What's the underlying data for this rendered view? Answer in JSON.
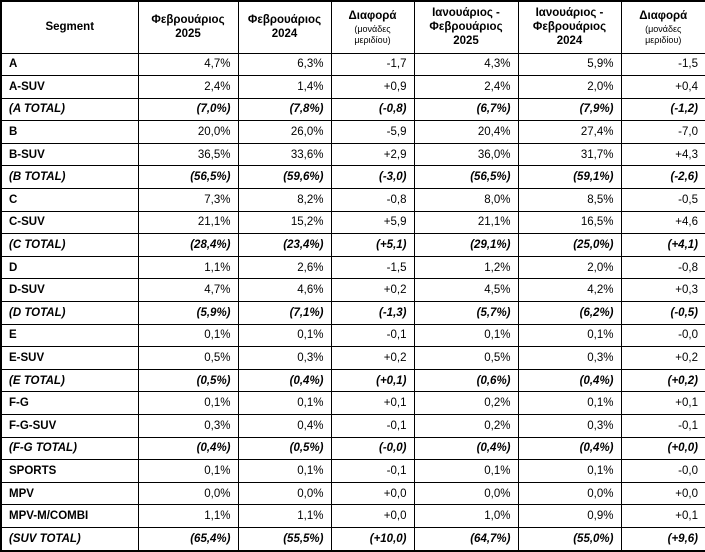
{
  "table": {
    "columns": [
      {
        "title": "Segment",
        "sub": ""
      },
      {
        "title": "Φεβρουάριος\n2025",
        "sub": ""
      },
      {
        "title": "Φεβρουάριος\n2024",
        "sub": ""
      },
      {
        "title": "Διαφορά",
        "sub": "(μονάδες\nμεριδίου)"
      },
      {
        "title": "Ιανουάριος -\nΦεβρουάριος\n2025",
        "sub": ""
      },
      {
        "title": "Ιανουάριος -\nΦεβρουάριος\n2024",
        "sub": ""
      },
      {
        "title": "Διαφορά",
        "sub": "(μονάδες\nμεριδίου)"
      }
    ],
    "rows": [
      {
        "segment": "A",
        "total": false,
        "values": [
          "4,7%",
          "6,3%",
          "-1,7",
          "4,3%",
          "5,9%",
          "-1,5"
        ]
      },
      {
        "segment": "A-SUV",
        "total": false,
        "values": [
          "2,4%",
          "1,4%",
          "+0,9",
          "2,4%",
          "2,0%",
          "+0,4"
        ]
      },
      {
        "segment": "(A TOTAL)",
        "total": true,
        "values": [
          "(7,0%)",
          "(7,8%)",
          "(-0,8)",
          "(6,7%)",
          "(7,9%)",
          "(-1,2)"
        ]
      },
      {
        "segment": "B",
        "total": false,
        "values": [
          "20,0%",
          "26,0%",
          "-5,9",
          "20,4%",
          "27,4%",
          "-7,0"
        ]
      },
      {
        "segment": "B-SUV",
        "total": false,
        "values": [
          "36,5%",
          "33,6%",
          "+2,9",
          "36,0%",
          "31,7%",
          "+4,3"
        ]
      },
      {
        "segment": "(B TOTAL)",
        "total": true,
        "values": [
          "(56,5%)",
          "(59,6%)",
          "(-3,0)",
          "(56,5%)",
          "(59,1%)",
          "(-2,6)"
        ]
      },
      {
        "segment": "C",
        "total": false,
        "values": [
          "7,3%",
          "8,2%",
          "-0,8",
          "8,0%",
          "8,5%",
          "-0,5"
        ]
      },
      {
        "segment": "C-SUV",
        "total": false,
        "values": [
          "21,1%",
          "15,2%",
          "+5,9",
          "21,1%",
          "16,5%",
          "+4,6"
        ]
      },
      {
        "segment": "(C TOTAL)",
        "total": true,
        "values": [
          "(28,4%)",
          "(23,4%)",
          "(+5,1)",
          "(29,1%)",
          "(25,0%)",
          "(+4,1)"
        ]
      },
      {
        "segment": "D",
        "total": false,
        "values": [
          "1,1%",
          "2,6%",
          "-1,5",
          "1,2%",
          "2,0%",
          "-0,8"
        ]
      },
      {
        "segment": "D-SUV",
        "total": false,
        "values": [
          "4,7%",
          "4,6%",
          "+0,2",
          "4,5%",
          "4,2%",
          "+0,3"
        ]
      },
      {
        "segment": "(D TOTAL)",
        "total": true,
        "values": [
          "(5,9%)",
          "(7,1%)",
          "(-1,3)",
          "(5,7%)",
          "(6,2%)",
          "(-0,5)"
        ]
      },
      {
        "segment": "E",
        "total": false,
        "values": [
          "0,1%",
          "0,1%",
          "-0,1",
          "0,1%",
          "0,1%",
          "-0,0"
        ]
      },
      {
        "segment": "E-SUV",
        "total": false,
        "values": [
          "0,5%",
          "0,3%",
          "+0,2",
          "0,5%",
          "0,3%",
          "+0,2"
        ]
      },
      {
        "segment": "(E TOTAL)",
        "total": true,
        "values": [
          "(0,5%)",
          "(0,4%)",
          "(+0,1)",
          "(0,6%)",
          "(0,4%)",
          "(+0,2)"
        ]
      },
      {
        "segment": "F-G",
        "total": false,
        "values": [
          "0,1%",
          "0,1%",
          "+0,1",
          "0,2%",
          "0,1%",
          "+0,1"
        ]
      },
      {
        "segment": "F-G-SUV",
        "total": false,
        "values": [
          "0,3%",
          "0,4%",
          "-0,1",
          "0,2%",
          "0,3%",
          "-0,1"
        ]
      },
      {
        "segment": "(F-G TOTAL)",
        "total": true,
        "values": [
          "(0,4%)",
          "(0,5%)",
          "(-0,0)",
          "(0,4%)",
          "(0,4%)",
          "(+0,0)"
        ]
      },
      {
        "segment": "SPORTS",
        "total": false,
        "values": [
          "0,1%",
          "0,1%",
          "-0,1",
          "0,1%",
          "0,1%",
          "-0,0"
        ]
      },
      {
        "segment": "MPV",
        "total": false,
        "values": [
          "0,0%",
          "0,0%",
          "+0,0",
          "0,0%",
          "0,0%",
          "+0,0"
        ]
      },
      {
        "segment": "MPV-M/COMBI",
        "total": false,
        "values": [
          "1,1%",
          "1,1%",
          "+0,0",
          "1,0%",
          "0,9%",
          "+0,1"
        ]
      },
      {
        "segment": "(SUV TOTAL)",
        "total": true,
        "values": [
          "(65,4%)",
          "(55,5%)",
          "(+10,0)",
          "(64,7%)",
          "(55,0%)",
          "(+9,6)"
        ]
      }
    ]
  }
}
